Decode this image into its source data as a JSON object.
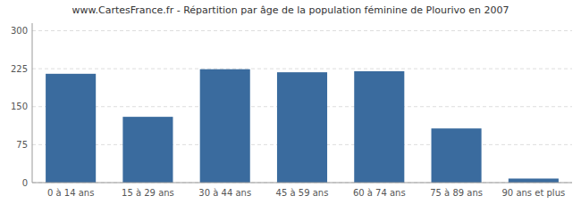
{
  "chart_data": {
    "type": "bar",
    "title": "www.CartesFrance.fr - Répartition par âge de la population féminine de Plourivo en 2007",
    "categories": [
      "0 à 14 ans",
      "15 à 29 ans",
      "30 à 44 ans",
      "45 à 59 ans",
      "60 à 74 ans",
      "75 à 89 ans",
      "90 ans et plus"
    ],
    "values": [
      215,
      130,
      224,
      218,
      220,
      107,
      8
    ],
    "color": "#3a6b9e",
    "ylim": [
      0,
      315
    ],
    "yticks": [
      0,
      75,
      150,
      225,
      300
    ],
    "grid": true
  }
}
